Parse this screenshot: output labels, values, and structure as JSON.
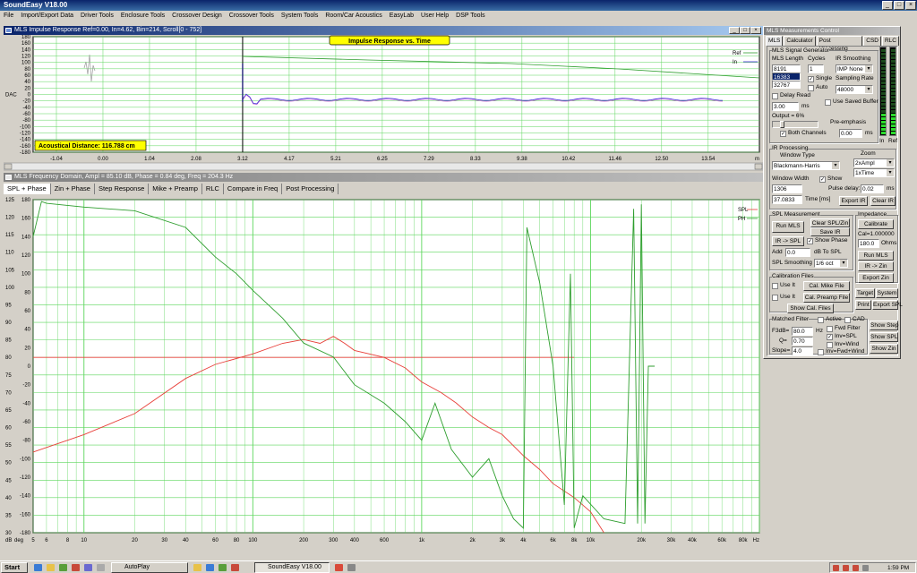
{
  "window": {
    "title": "SoundEasy V18.00",
    "min": "_",
    "max": "□",
    "close": "×"
  },
  "menu": [
    "File",
    "Import/Export Data",
    "Driver Tools",
    "Enclosure Tools",
    "Crossover Design",
    "Crossover Tools",
    "System Tools",
    "Room/Car Acoustics",
    "EasyLab",
    "User Help",
    "DSP Tools"
  ],
  "impulse": {
    "header": "MLS Impulse Response  Ref=0.00, In=4.62, Bin=214, Scroll[0 - 752]",
    "banner": "Impulse Response vs. Time",
    "dac_label": "DAC",
    "distance": "Acoustical Distance: 116.788 cm",
    "y_ticks": [
      "180",
      "160",
      "140",
      "120",
      "100",
      "80",
      "60",
      "40",
      "20",
      "0",
      "-20",
      "-40",
      "-60",
      "-80",
      "-100",
      "-120",
      "-140",
      "-160",
      "-180"
    ],
    "x_ticks": [
      "-1.04",
      "0.00",
      "1.04",
      "2.08",
      "3.12",
      "4.17",
      "5.21",
      "6.25",
      "7.29",
      "8.33",
      "9.38",
      "10.42",
      "11.46",
      "12.50",
      "13.54"
    ],
    "x_unit": "m",
    "legend": [
      "Ref",
      "In"
    ]
  },
  "freq": {
    "header": "MLS Frequency Domain, Ampl = 85.10 dB, Phase = 0.84 deg, Freq = 204.3 Hz",
    "tabs": [
      "SPL + Phase",
      "Zin + Phase",
      "Step Response",
      "Mike + Preamp",
      "RLC",
      "Compare in Freq",
      "Post Processing"
    ],
    "db_ticks": [
      "125",
      "120",
      "115",
      "110",
      "105",
      "100",
      "95",
      "90",
      "85",
      "80",
      "75",
      "70",
      "65",
      "60",
      "55",
      "50",
      "45",
      "40",
      "35",
      "30"
    ],
    "deg_ticks": [
      "180",
      "160",
      "140",
      "120",
      "100",
      "80",
      "60",
      "40",
      "20",
      "0",
      "-20",
      "-40",
      "-60",
      "-80",
      "-100",
      "-120",
      "-140",
      "-160",
      "-180"
    ],
    "x_ticks": [
      "5",
      "6",
      "8",
      "10",
      "20",
      "30",
      "40",
      "60",
      "80",
      "100",
      "200",
      "300",
      "400",
      "600",
      "1k",
      "2k",
      "3k",
      "4k",
      "6k",
      "8k",
      "10k",
      "20k",
      "30k",
      "40k",
      "60k",
      "80k"
    ],
    "unit_db": "dB",
    "unit_deg": "deg",
    "unit_hz": "Hz",
    "legend": [
      "SPL",
      "PH"
    ]
  },
  "panel": {
    "title": "MLS Measurements Control",
    "tabs": [
      "MLS",
      "Calculator",
      "Post Processing",
      "CSD",
      "RLC"
    ],
    "sig_gen": "MLS Signal Generator",
    "mls_length": "MLS Length",
    "cycles": "Cycles",
    "ir_smoothing": "IR Smoothing",
    "lengths": [
      "8191",
      "16383",
      "32767"
    ],
    "cycles_val": "1",
    "imp_none": "IMP None",
    "single": "Single",
    "auto": "Auto",
    "sampling_rate": "Sampling Rate",
    "rate": "48000",
    "delay_read": "Delay Read",
    "use_saved": "Use Saved Buffer",
    "delay_val": "3.00",
    "ms": "ms",
    "output": "Output = 6%",
    "pre_emph": "Pre-emphasis",
    "both_channels": "Both Channels",
    "both_val": "0.00",
    "ir_processing": "IR Processing",
    "window_type": "Window Type",
    "zoom": "Zoom",
    "window_val": "Blackmann-Harris",
    "zoom1": "2xAmpl",
    "zoom2": "1xTime",
    "window_width": "Window Width",
    "show": "Show",
    "width_val": "1306",
    "pulse_delay": "Pulse delay:",
    "pulse_val": "0.02",
    "time_val": "37.0833",
    "time_ms": "Time [ms]",
    "export_ir": "Export IR",
    "clear_ir": "Clear IR",
    "spl_meas": "SPL Measurement",
    "run_mls": "Run MLS",
    "clear_spl": "Clear SPL/Zin",
    "save_ir": "Save IR",
    "ir_spl": "IR -> SPL",
    "show_phase": "Show Phase",
    "add": "Add",
    "add_val": "0.0",
    "db_to_spl": "dB  To SPL",
    "spl_smooth": "SPL Smoothing",
    "smooth_val": "1/6 oct",
    "impedance": "Impedance",
    "calibrate": "Calibrate",
    "cal_val": "Cal=1.000000",
    "ohms_val": "180.0",
    "ohms": "Ohms",
    "run_mls2": "Run MLS",
    "ir_zin": "IR -> Zin",
    "export_zin": "Export Zin",
    "cal_files": "Calibration Files",
    "use_it": "Use It",
    "cal_mike": "Cal. Mike File",
    "cal_preamp": "Cal. Preamp File",
    "show_cal": "Show Cal. Files",
    "target": "Target",
    "system": "System",
    "print": "Print",
    "export_spl": "Export SPL",
    "matched": "Matched Filter",
    "active": "Active",
    "cad": "CAD",
    "f3db": "F3dB=",
    "f3_val": "80.0",
    "hz": "Hz",
    "fwd": "Fwd Filter",
    "q": "Q=",
    "q_val": "0.70",
    "inv_spl": "Inv=SPL",
    "slope": "Slope=",
    "slope_val": "4.0",
    "inv_wind": "Inv=Wind",
    "inv_fwd": "Inv=Fwd+Wind",
    "show_step": "Show Step",
    "show_spl": "Show SPL",
    "show_zin": "Show Zin",
    "meter_in": "In",
    "meter_ref": "Ref",
    "meter_in_level": 0.22,
    "meter_ref_level": 0.22
  },
  "taskbar": {
    "start": "Start",
    "autoplay": "AutoPlay",
    "soundeasy": "SoundEasy V18.00",
    "clock": "1:59 PM"
  },
  "colors": {
    "grid": "#5cd65c",
    "spl": "#e8403a",
    "phase": "#2f9e2f",
    "ref": "#2f9e2f",
    "in": "#3b2bd6",
    "banner": "#ffff00",
    "title": "#0a246a"
  }
}
